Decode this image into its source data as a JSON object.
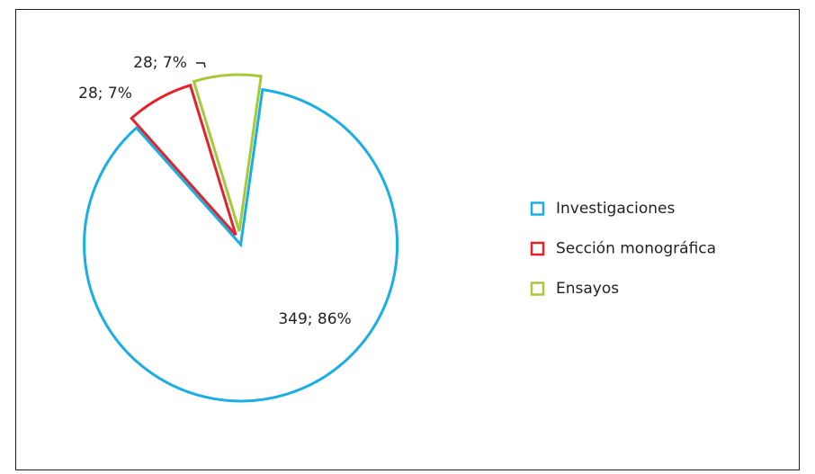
{
  "chart_data": {
    "type": "pie",
    "categories": [
      "Investigaciones",
      "Sección monográfica",
      "Ensayos"
    ],
    "values": [
      349,
      28,
      28
    ],
    "value_labels": [
      "349; 86%",
      "28; 7%",
      "28; 7%"
    ],
    "colors": [
      "#1aaee5",
      "#e5222a",
      "#a6c93a"
    ],
    "legend": "right"
  }
}
